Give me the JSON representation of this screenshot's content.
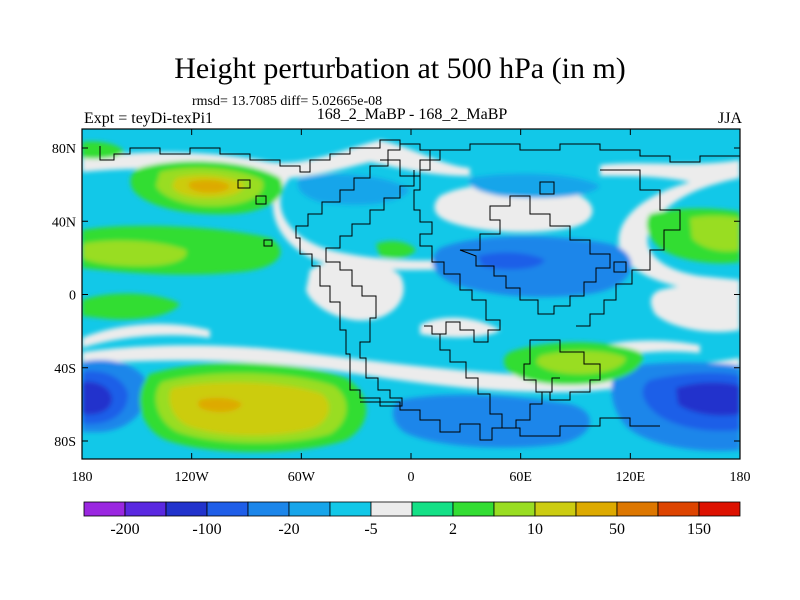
{
  "title": "Height perturbation at 500 hPa (in m)",
  "stats": "rmsd= 13.7085 diff= 5.02665e-08",
  "experiment": "Expt = teyDi-texPi1",
  "case_id": "168_2_MaBP - 168_2_MaBP",
  "season": "JJA",
  "map": {
    "lon_ticks": [
      "180",
      "120W",
      "60W",
      "0",
      "60E",
      "120E",
      "180"
    ],
    "lat_ticks": [
      "80N",
      "40N",
      "0",
      "40S",
      "80S"
    ]
  },
  "colorbar": {
    "labels": [
      "-200",
      "-100",
      "-20",
      "-5",
      "2",
      "10",
      "50",
      "150"
    ],
    "colors": [
      "#9a27e0",
      "#5a28e0",
      "#2233cc",
      "#1f5ee8",
      "#1c86ea",
      "#17a5ea",
      "#12c8e8",
      "#ececec",
      "#14e086",
      "#33dd33",
      "#99dd22",
      "#cccc11",
      "#ddaa00",
      "#dd7700",
      "#dd4400",
      "#dd1100"
    ]
  },
  "field_colors": {
    "neutral": "#ececec",
    "light_blue": "#12c8e8",
    "mid_blue": "#17a5ea",
    "blue": "#1c86ea",
    "deep_blue": "#1f5ee8",
    "darker_blue": "#2233cc",
    "green": "#33dd33",
    "yellow_green": "#99dd22",
    "olive": "#cccc11",
    "orange": "#ddaa00"
  }
}
